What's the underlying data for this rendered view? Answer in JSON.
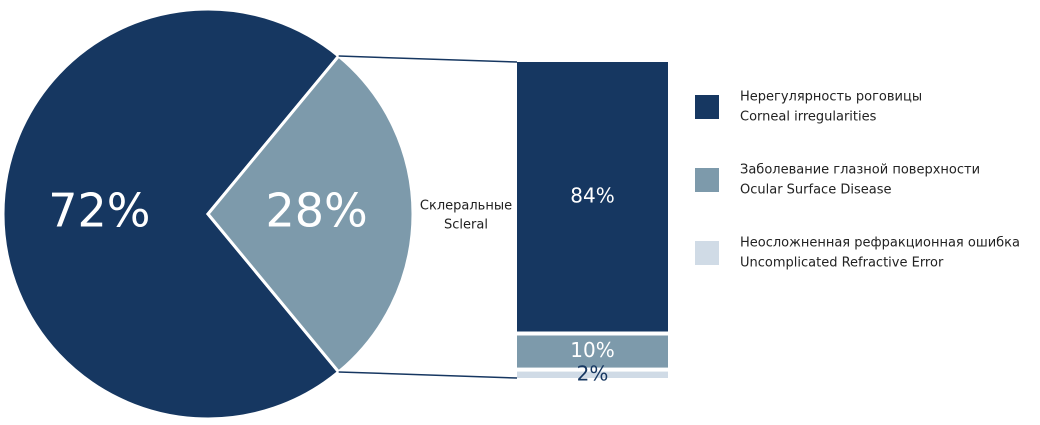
{
  "chart_data": {
    "type": "pie-of-bar",
    "pie": {
      "values": [
        72,
        28
      ],
      "value_labels": [
        "72%",
        "28%"
      ],
      "colors": [
        "#163761",
        "#7d9aab"
      ]
    },
    "bar": {
      "title": "Склеральные",
      "subtitle": "Scleral",
      "values": [
        84,
        10,
        2
      ],
      "value_labels": [
        "84%",
        "10%",
        "2%"
      ],
      "colors": [
        "#163761",
        "#7d9aab",
        "#d0dbe6"
      ]
    },
    "legend": [
      {
        "name": "Нерегулярность роговицы",
        "name_en": "Corneal irregularities",
        "color": "#163761"
      },
      {
        "name": "Заболевание глазной поверхности",
        "name_en": "Ocular Surface Disease",
        "color": "#7d9aab"
      },
      {
        "name": "Неосложненная рефракционная ошибка",
        "name_en": "Uncomplicated Refractive Error",
        "color": "#d0dbe6"
      }
    ]
  }
}
